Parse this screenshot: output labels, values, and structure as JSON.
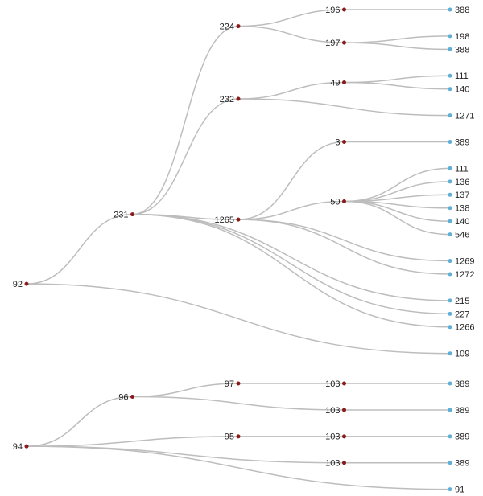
{
  "trees": [
    {
      "label": "92",
      "children": [
        {
          "label": "231",
          "children": [
            {
              "label": "224",
              "children": [
                {
                  "label": "196",
                  "children": [
                    {
                      "label": "388"
                    }
                  ]
                },
                {
                  "label": "197",
                  "children": [
                    {
                      "label": "198"
                    },
                    {
                      "label": "388"
                    }
                  ]
                }
              ]
            },
            {
              "label": "232",
              "children": [
                {
                  "label": "49",
                  "children": [
                    {
                      "label": "111"
                    },
                    {
                      "label": "140"
                    }
                  ]
                },
                {
                  "label": "1271"
                }
              ]
            },
            {
              "label": "1265",
              "children": [
                {
                  "label": "3",
                  "children": [
                    {
                      "label": "389"
                    }
                  ]
                },
                {
                  "label": "50",
                  "children": [
                    {
                      "label": "111"
                    },
                    {
                      "label": "136"
                    },
                    {
                      "label": "137"
                    },
                    {
                      "label": "138"
                    },
                    {
                      "label": "140"
                    },
                    {
                      "label": "546"
                    }
                  ]
                },
                {
                  "label": "1269"
                },
                {
                  "label": "1272"
                }
              ]
            },
            {
              "label": "215"
            },
            {
              "label": "227"
            },
            {
              "label": "1266"
            }
          ]
        },
        {
          "label": "109"
        }
      ]
    },
    {
      "label": "94",
      "children": [
        {
          "label": "96",
          "children": [
            {
              "label": "97",
              "children": [
                {
                  "label": "103",
                  "children": [
                    {
                      "label": "389"
                    }
                  ]
                }
              ]
            },
            {
              "label": "103",
              "children": [
                {
                  "label": "389"
                }
              ]
            }
          ]
        },
        {
          "label": "95",
          "children": [
            {
              "label": "103",
              "children": [
                {
                  "label": "389"
                }
              ]
            }
          ]
        },
        {
          "label": "103",
          "children": [
            {
              "label": "389"
            }
          ]
        },
        {
          "label": "91"
        }
      ]
    }
  ]
}
